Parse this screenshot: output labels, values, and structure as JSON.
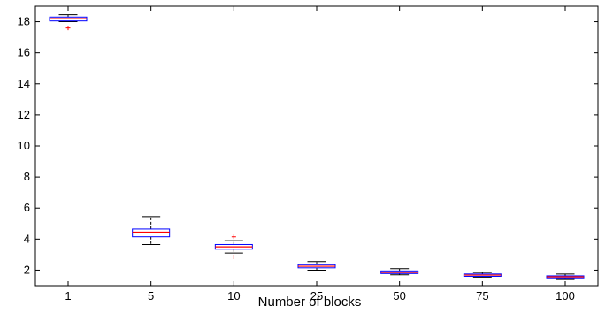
{
  "chart_data": {
    "type": "boxplot",
    "title": "",
    "xlabel": "Number of blocks",
    "ylabel": "",
    "categories": [
      "1",
      "5",
      "10",
      "25",
      "50",
      "75",
      "100"
    ],
    "ylim": [
      1,
      19
    ],
    "yticks": [
      2,
      4,
      6,
      8,
      10,
      12,
      14,
      16,
      18
    ],
    "grid": false,
    "boxes": [
      {
        "category": "1",
        "whisker_low": 18.0,
        "q1": 18.05,
        "median": 18.2,
        "q3": 18.3,
        "whisker_high": 18.45,
        "outliers": [
          17.6
        ]
      },
      {
        "category": "5",
        "whisker_low": 3.65,
        "q1": 4.15,
        "median": 4.45,
        "q3": 4.65,
        "whisker_high": 5.45,
        "outliers": []
      },
      {
        "category": "10",
        "whisker_low": 3.1,
        "q1": 3.35,
        "median": 3.5,
        "q3": 3.65,
        "whisker_high": 3.9,
        "outliers": [
          2.85,
          4.15
        ]
      },
      {
        "category": "25",
        "whisker_low": 2.0,
        "q1": 2.15,
        "median": 2.25,
        "q3": 2.35,
        "whisker_high": 2.55,
        "outliers": []
      },
      {
        "category": "50",
        "whisker_low": 1.7,
        "q1": 1.78,
        "median": 1.85,
        "q3": 1.95,
        "whisker_high": 2.1,
        "outliers": []
      },
      {
        "category": "75",
        "whisker_low": 1.55,
        "q1": 1.6,
        "median": 1.68,
        "q3": 1.75,
        "whisker_high": 1.85,
        "outliers": []
      },
      {
        "category": "100",
        "whisker_low": 1.45,
        "q1": 1.5,
        "median": 1.57,
        "q3": 1.63,
        "whisker_high": 1.75,
        "outliers": []
      }
    ],
    "colors": {
      "box": "#0000ff",
      "median": "#ff0000",
      "whisker": "#000000",
      "outlier": "#ff0000",
      "axis": "#000000"
    }
  }
}
